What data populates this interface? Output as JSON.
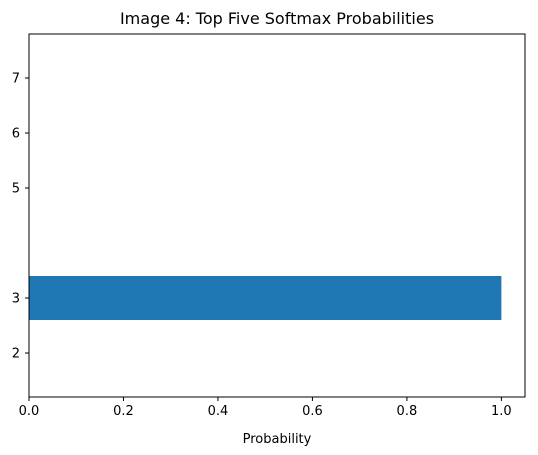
{
  "chart_data": {
    "type": "bar",
    "orientation": "horizontal",
    "title": "Image 4: Top Five Softmax Probabilities",
    "xlabel": "Probability",
    "ylabel": "",
    "xlim": [
      0,
      1.05
    ],
    "ylim": [
      1.2,
      7.8
    ],
    "grid": false,
    "legend": "none",
    "bar_color": "#1f77b4",
    "x_ticks": [
      0.0,
      0.2,
      0.4,
      0.6,
      0.8,
      1.0
    ],
    "x_tick_labels": [
      "0.0",
      "0.2",
      "0.4",
      "0.6",
      "0.8",
      "1.0"
    ],
    "y_ticks": [
      2,
      3,
      5,
      6,
      7
    ],
    "y_tick_labels": [
      "2",
      "3",
      "5",
      "6",
      "7"
    ],
    "bar_height": 0.8,
    "bars": [
      {
        "category": 3,
        "value": 1.0
      },
      {
        "category": 2,
        "value": 0.0
      },
      {
        "category": 5,
        "value": 0.0
      },
      {
        "category": 6,
        "value": 0.0
      },
      {
        "category": 7,
        "value": 0.0
      }
    ]
  }
}
